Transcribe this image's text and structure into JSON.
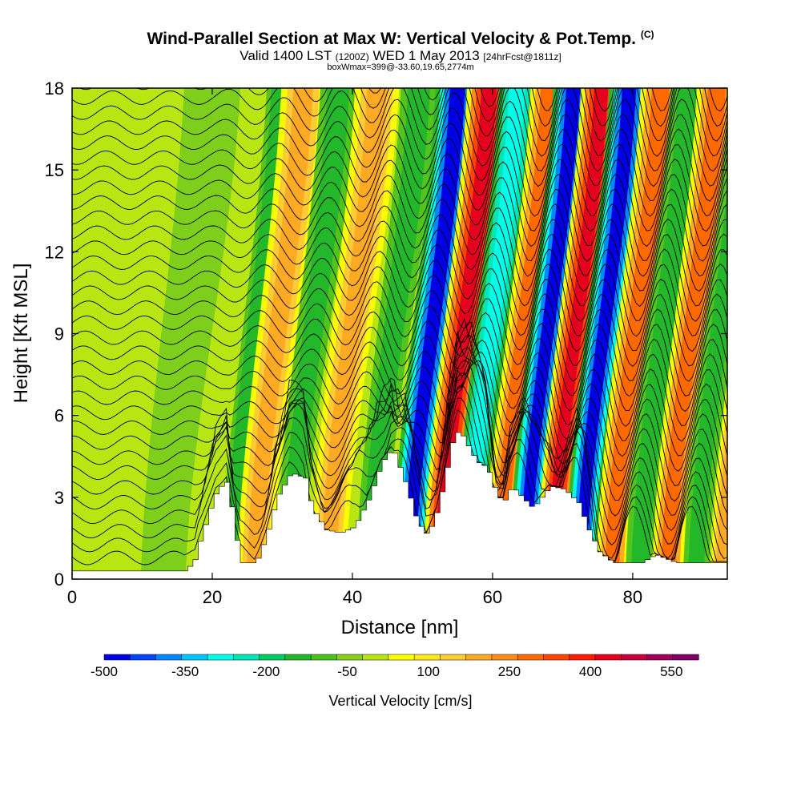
{
  "header": {
    "title_main": "Wind-Parallel Section at Max W: Vertical Velocity & Pot.Temp.",
    "title_copy": "(C)",
    "subtitle_a": "Valid 1400 LST",
    "subtitle_b": "(1200Z)",
    "subtitle_c": "WED 1 May 2013",
    "subtitle_d": "[24hrFcst@1811z]",
    "box_info": "boxWmax=399@-33.60,19.65,2774m"
  },
  "chart_data": {
    "type": "heatmap",
    "title": "Wind-Parallel Section at Max W: Vertical Velocity & Pot.Temp.",
    "xlabel": "Distance [nm]",
    "ylabel": "Height [Kft MSL]",
    "xlim": [
      0,
      93.5
    ],
    "ylim": [
      0,
      18
    ],
    "x_ticks": [
      0,
      20,
      40,
      60,
      80
    ],
    "y_ticks": [
      0,
      3,
      6,
      9,
      12,
      15,
      18
    ],
    "grid": false,
    "colorbar": {
      "title": "Vertical Velocity [cm/s]",
      "position": "bottom",
      "tick_labels": [
        "-500",
        "-350",
        "-200",
        "-50",
        "100",
        "250",
        "400",
        "550"
      ],
      "tick_values": [
        -500,
        -350,
        -200,
        -50,
        100,
        250,
        400,
        550
      ],
      "bins": [
        -500,
        -450,
        -400,
        -350,
        -300,
        -250,
        -200,
        -150,
        -100,
        -50,
        0,
        50,
        100,
        150,
        200,
        250,
        300,
        350,
        400,
        450,
        500,
        550,
        600
      ],
      "colors": [
        "#0000e6",
        "#0044ff",
        "#0088ff",
        "#00c8ff",
        "#00ffe8",
        "#00e6b4",
        "#00cc66",
        "#22b82a",
        "#4cc21e",
        "#88d11b",
        "#b8e612",
        "#ffff00",
        "#ffe81a",
        "#ffcc33",
        "#ffaa22",
        "#ff8c1a",
        "#ff6a00",
        "#ff4400",
        "#ff1a00",
        "#e6001e",
        "#c80040",
        "#a0005a",
        "#800066"
      ]
    },
    "terrain_kft": [
      [
        0,
        0.3
      ],
      [
        16,
        0.3
      ],
      [
        17.5,
        0.8
      ],
      [
        18,
        1.4
      ],
      [
        19.5,
        2.6
      ],
      [
        20.5,
        3.3
      ],
      [
        22,
        3.6
      ],
      [
        23,
        1.7
      ],
      [
        24,
        0.6
      ],
      [
        26,
        0.6
      ],
      [
        27.5,
        1.6
      ],
      [
        29,
        3.0
      ],
      [
        31,
        3.9
      ],
      [
        33,
        3.7
      ],
      [
        34,
        2.6
      ],
      [
        36,
        1.8
      ],
      [
        38,
        1.7
      ],
      [
        40,
        1.9
      ],
      [
        42,
        2.9
      ],
      [
        44,
        4.3
      ],
      [
        45.5,
        4.8
      ],
      [
        47.5,
        3.4
      ],
      [
        49,
        2.1
      ],
      [
        50.5,
        1.6
      ],
      [
        52,
        2.6
      ],
      [
        54,
        5.0
      ],
      [
        55,
        5.5
      ],
      [
        56,
        5.0
      ],
      [
        57.5,
        4.3
      ],
      [
        59,
        4.1
      ],
      [
        60.5,
        3.0
      ],
      [
        61.5,
        2.9
      ],
      [
        62.5,
        3.4
      ],
      [
        64,
        3.0
      ],
      [
        65.5,
        2.6
      ],
      [
        68,
        3.4
      ],
      [
        70,
        3.3
      ],
      [
        72,
        2.8
      ],
      [
        73.5,
        1.8
      ],
      [
        75,
        1.0
      ],
      [
        77,
        0.6
      ],
      [
        81,
        0.6
      ],
      [
        83,
        0.9
      ],
      [
        86,
        0.6
      ],
      [
        90,
        0.6
      ],
      [
        93.5,
        0.6
      ]
    ],
    "wave_bands": [
      {
        "x": 13,
        "w": 70,
        "kind": "weak_dn"
      },
      {
        "x": 22.5,
        "w": 30,
        "kind": "dn"
      },
      {
        "x": 26,
        "w": 55,
        "kind": "up"
      },
      {
        "x": 31,
        "w": 45,
        "kind": "dn"
      },
      {
        "x": 36.5,
        "w": 55,
        "kind": "up"
      },
      {
        "x": 42.5,
        "w": 45,
        "kind": "dn"
      },
      {
        "x": 48,
        "w": 55,
        "kind": "strong_dn"
      },
      {
        "x": 52.5,
        "w": 55,
        "kind": "strong_up"
      },
      {
        "x": 56.5,
        "w": 45,
        "kind": "mod_dn"
      },
      {
        "x": 61,
        "w": 45,
        "kind": "mod_up"
      },
      {
        "x": 64.5,
        "w": 50,
        "kind": "strong_dn"
      },
      {
        "x": 68.5,
        "w": 50,
        "kind": "strong_up"
      },
      {
        "x": 72.5,
        "w": 50,
        "kind": "strong_dn"
      },
      {
        "x": 77,
        "w": 50,
        "kind": "mod_up"
      },
      {
        "x": 81,
        "w": 45,
        "kind": "dn"
      },
      {
        "x": 85,
        "w": 50,
        "kind": "mod_up"
      },
      {
        "x": 89,
        "w": 40,
        "kind": "dn"
      },
      {
        "x": 92.5,
        "w": 30,
        "kind": "up"
      }
    ],
    "theta_contours": {
      "count": 34,
      "y_start_kft": 0.6,
      "y_step_kft": 0.55
    }
  }
}
